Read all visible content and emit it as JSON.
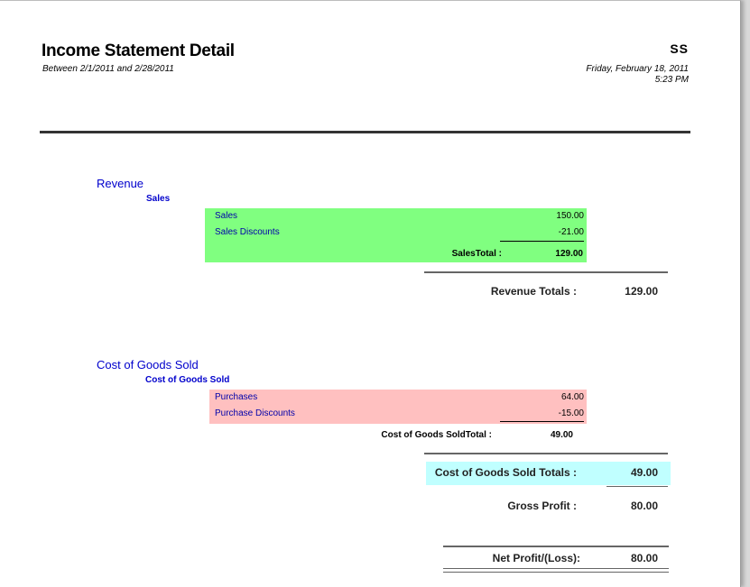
{
  "header": {
    "title": "Income Statement Detail",
    "subtitle": "Between 2/1/2011 and 2/28/2011",
    "company": "SS",
    "date": "Friday, February 18, 2011",
    "time": "5:23 PM"
  },
  "revenue": {
    "section_label": "Revenue",
    "group_label": "Sales",
    "rows": [
      {
        "label": "Sales",
        "value": "150.00"
      },
      {
        "label": "Sales Discounts",
        "value": "-21.00"
      }
    ],
    "group_total_label": "SalesTotal :",
    "group_total_value": "129.00",
    "section_total_label": "Revenue Totals :",
    "section_total_value": "129.00",
    "block_color": "#80ff80"
  },
  "cogs": {
    "section_label": "Cost of Goods Sold",
    "group_label": "Cost of Goods Sold",
    "rows": [
      {
        "label": "Purchases",
        "value": "64.00"
      },
      {
        "label": "Purchase Discounts",
        "value": "-15.00"
      }
    ],
    "group_total_label": "Cost of Goods SoldTotal :",
    "group_total_value": "49.00",
    "section_total_label": "Cost of Goods Sold Totals :",
    "section_total_value": "49.00",
    "block_color": "#ffc0c0",
    "total_highlight_color": "#c0ffff"
  },
  "gross_profit": {
    "label": "Gross Profit :",
    "value": "80.00"
  },
  "net_profit": {
    "label": "Net Profit/(Loss):",
    "value": "80.00"
  }
}
